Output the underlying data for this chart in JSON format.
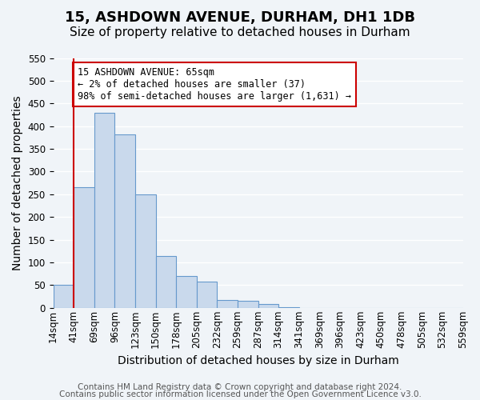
{
  "title": "15, ASHDOWN AVENUE, DURHAM, DH1 1DB",
  "subtitle": "Size of property relative to detached houses in Durham",
  "xlabel": "Distribution of detached houses by size in Durham",
  "ylabel": "Number of detached properties",
  "footer_lines": [
    "Contains HM Land Registry data © Crown copyright and database right 2024.",
    "Contains public sector information licensed under the Open Government Licence v3.0."
  ],
  "bin_labels": [
    "14sqm",
    "41sqm",
    "69sqm",
    "96sqm",
    "123sqm",
    "150sqm",
    "178sqm",
    "205sqm",
    "232sqm",
    "259sqm",
    "287sqm",
    "314sqm",
    "341sqm",
    "369sqm",
    "396sqm",
    "423sqm",
    "450sqm",
    "478sqm",
    "505sqm",
    "532sqm",
    "559sqm"
  ],
  "bar_values": [
    50,
    265,
    430,
    382,
    250,
    115,
    70,
    58,
    18,
    15,
    8,
    2,
    0,
    0,
    0,
    0,
    0,
    0,
    0,
    0
  ],
  "bar_color": "#c9d9ec",
  "bar_edge_color": "#6699cc",
  "ylim": [
    0,
    550
  ],
  "yticks": [
    0,
    50,
    100,
    150,
    200,
    250,
    300,
    350,
    400,
    450,
    500,
    550
  ],
  "property_line_x": 1,
  "property_line_color": "#cc0000",
  "annotation_text": "15 ASHDOWN AVENUE: 65sqm\n← 2% of detached houses are smaller (37)\n98% of semi-detached houses are larger (1,631) →",
  "annotation_box_color": "#ffffff",
  "annotation_box_edge": "#cc0000",
  "bg_color": "#f0f4f8",
  "plot_bg_color": "#f0f4f8",
  "grid_color": "#ffffff",
  "title_fontsize": 13,
  "subtitle_fontsize": 11,
  "axis_label_fontsize": 10,
  "tick_fontsize": 8.5,
  "footer_fontsize": 7.5
}
